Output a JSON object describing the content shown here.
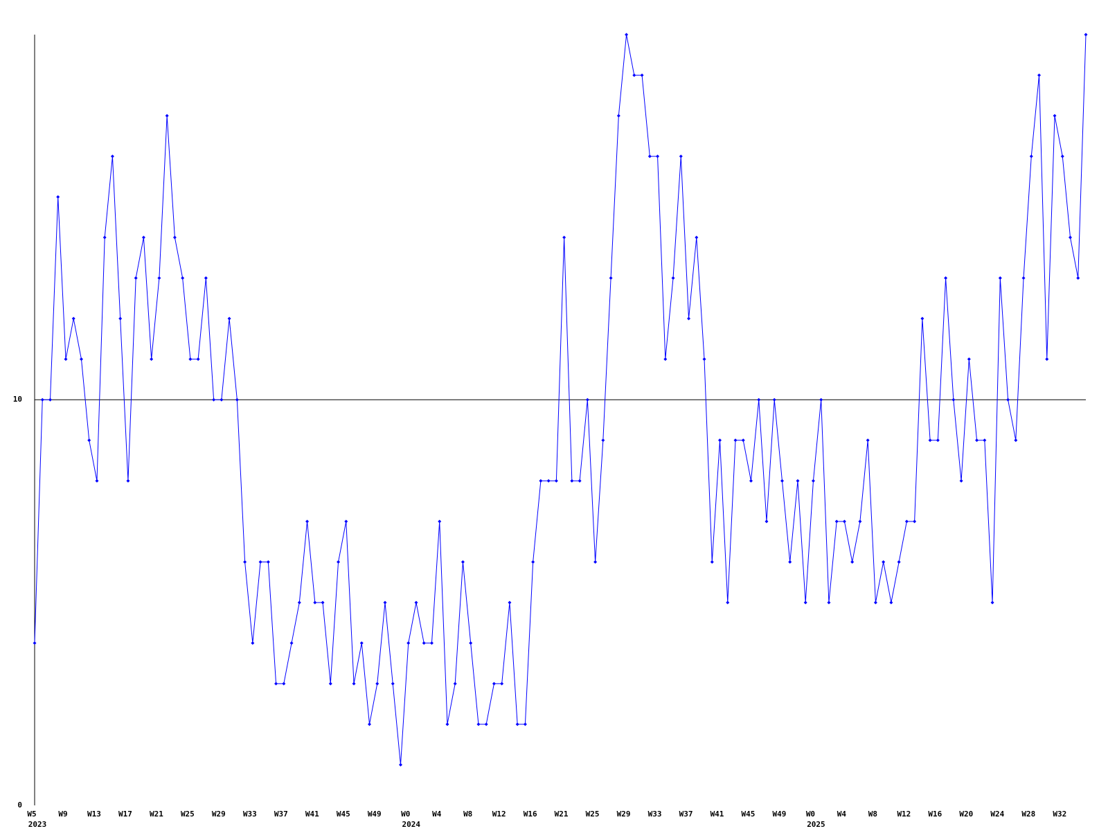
{
  "chart_data": {
    "type": "line",
    "categories": [
      "W5",
      null,
      null,
      null,
      "W9",
      null,
      null,
      null,
      "W13",
      null,
      null,
      null,
      "W17",
      null,
      null,
      null,
      "W21",
      null,
      null,
      null,
      "W25",
      null,
      null,
      null,
      "W29",
      null,
      null,
      null,
      "W33",
      null,
      null,
      null,
      "W37",
      null,
      null,
      null,
      "W41",
      null,
      null,
      null,
      "W45",
      null,
      null,
      null,
      "W49",
      null,
      null,
      null,
      "W0",
      null,
      null,
      null,
      "W4",
      null,
      null,
      null,
      "W8",
      null,
      null,
      null,
      "W12",
      null,
      null,
      null,
      "W16",
      null,
      null,
      null,
      "W21",
      null,
      null,
      null,
      "W25",
      null,
      null,
      null,
      "W29",
      null,
      null,
      null,
      "W33",
      null,
      null,
      null,
      "W37",
      null,
      null,
      null,
      "W41",
      null,
      null,
      null,
      "W45",
      null,
      null,
      null,
      "W49",
      null,
      null,
      null,
      "W0",
      null,
      null,
      null,
      "W4",
      null,
      null,
      null,
      "W8",
      null,
      null,
      null,
      "W12",
      null,
      null,
      null,
      "W16",
      null,
      null,
      null,
      "W20",
      null,
      null,
      null,
      "W24",
      null,
      null,
      null,
      "W28",
      null,
      null,
      null,
      "W32",
      null,
      null,
      null
    ],
    "category_years": [
      "2023",
      null,
      null,
      null,
      null,
      null,
      null,
      null,
      null,
      null,
      null,
      null,
      null,
      null,
      null,
      null,
      null,
      null,
      null,
      null,
      null,
      null,
      null,
      null,
      null,
      null,
      null,
      null,
      null,
      null,
      null,
      null,
      null,
      null,
      null,
      null,
      null,
      null,
      null,
      null,
      null,
      null,
      null,
      null,
      null,
      null,
      null,
      null,
      "2024",
      null,
      null,
      null,
      null,
      null,
      null,
      null,
      null,
      null,
      null,
      null,
      null,
      null,
      null,
      null,
      null,
      null,
      null,
      null,
      null,
      null,
      null,
      null,
      null,
      null,
      null,
      null,
      null,
      null,
      null,
      null,
      null,
      null,
      null,
      null,
      null,
      null,
      null,
      null,
      null,
      null,
      null,
      null,
      null,
      null,
      null,
      null,
      null,
      null,
      null,
      null,
      "2025",
      null,
      null,
      null,
      null,
      null,
      null,
      null,
      null,
      null,
      null,
      null,
      null,
      null,
      null,
      null,
      null,
      null,
      null,
      null,
      null,
      null,
      null,
      null,
      null,
      null,
      null,
      null,
      null,
      null,
      null,
      null,
      null,
      null,
      null,
      null
    ],
    "values": [
      4,
      10,
      10,
      15,
      11,
      12,
      11,
      9,
      8,
      14,
      16,
      12,
      8,
      13,
      14,
      11,
      13,
      17,
      14,
      13,
      11,
      11,
      13,
      10,
      10,
      12,
      10,
      6,
      4,
      6,
      6,
      3,
      3,
      4,
      5,
      7,
      5,
      5,
      3,
      6,
      7,
      3,
      4,
      2,
      3,
      5,
      3,
      1,
      4,
      5,
      4,
      4,
      7,
      2,
      3,
      6,
      4,
      2,
      2,
      3,
      3,
      5,
      2,
      2,
      6,
      8,
      8,
      8,
      14,
      8,
      8,
      10,
      6,
      9,
      13,
      17,
      19,
      18,
      18,
      16,
      16,
      11,
      13,
      16,
      12,
      14,
      11,
      6,
      9,
      5,
      9,
      9,
      8,
      10,
      7,
      10,
      8,
      6,
      8,
      5,
      8,
      10,
      5,
      7,
      7,
      6,
      7,
      9,
      5,
      6,
      5,
      6,
      7,
      7,
      12,
      9,
      9,
      13,
      10,
      8,
      11,
      9,
      9,
      5,
      13,
      10,
      9,
      13,
      16,
      18,
      11,
      17,
      16,
      14,
      13,
      19
    ],
    "color": "#0000ff",
    "ylim": [
      0,
      19
    ],
    "yticks": [
      0,
      10
    ],
    "grid": true
  }
}
